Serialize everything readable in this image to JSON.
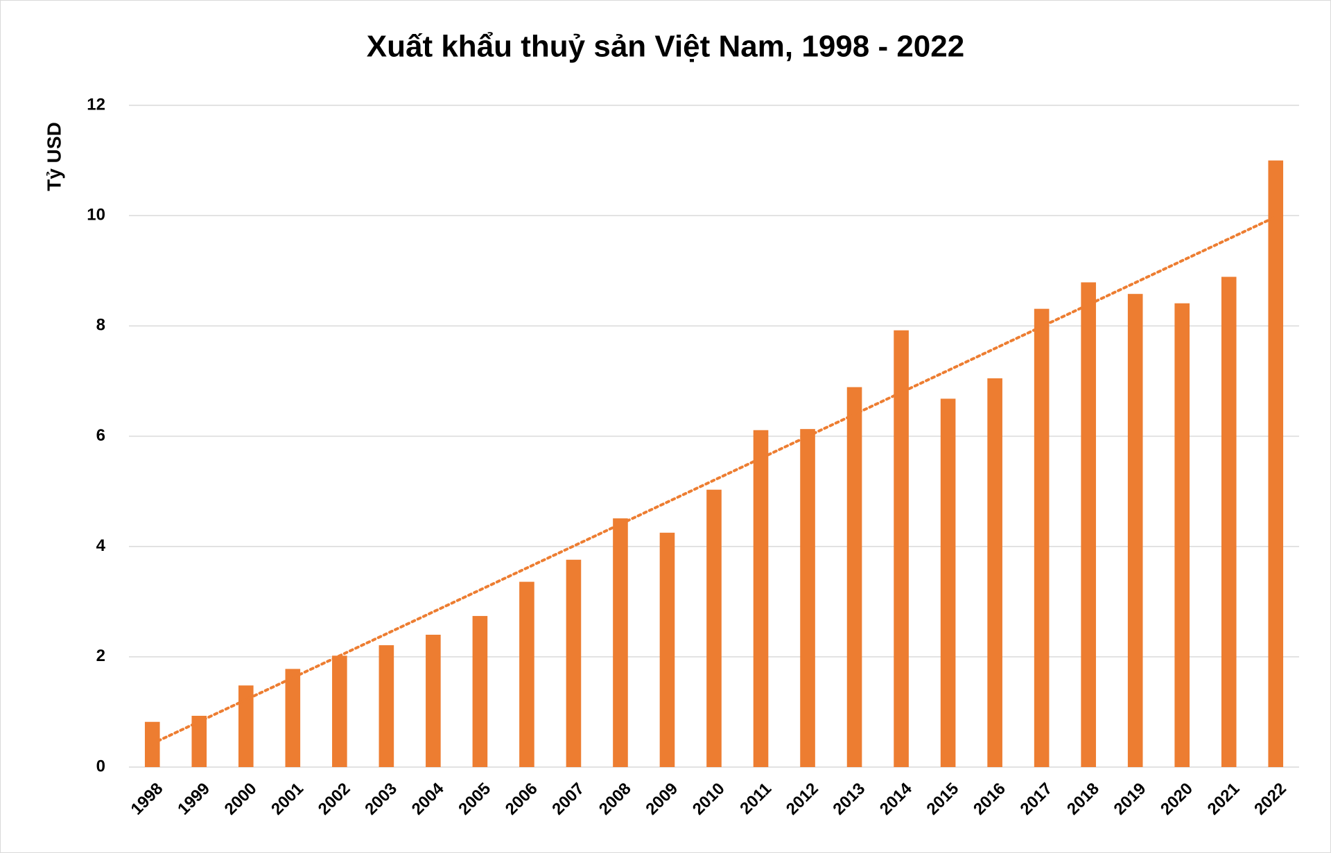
{
  "chart_data": {
    "type": "bar",
    "title": "Xuất khẩu thuỷ sản Việt Nam, 1998 - 2022",
    "y_label": "Tỷ USD",
    "categories": [
      "1998",
      "1999",
      "2000",
      "2001",
      "2002",
      "2003",
      "2004",
      "2005",
      "2006",
      "2007",
      "2008",
      "2009",
      "2010",
      "2011",
      "2012",
      "2013",
      "2014",
      "2015",
      "2016",
      "2017",
      "2018",
      "2019",
      "2020",
      "2021",
      "2022"
    ],
    "values": [
      0.82,
      0.93,
      1.48,
      1.78,
      2.02,
      2.21,
      2.4,
      2.74,
      3.36,
      3.76,
      4.51,
      4.25,
      5.03,
      6.11,
      6.13,
      6.89,
      7.92,
      6.68,
      7.05,
      8.31,
      8.79,
      8.58,
      8.41,
      8.89,
      11.0
    ],
    "color": "#ed7d31",
    "trendline": "linear",
    "ylim": [
      0,
      12
    ],
    "yticks": [
      0,
      2,
      4,
      6,
      8,
      10,
      12
    ],
    "grid": true
  }
}
